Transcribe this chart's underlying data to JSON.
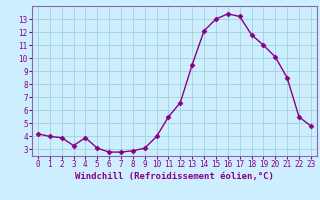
{
  "x": [
    0,
    1,
    2,
    3,
    4,
    5,
    6,
    7,
    8,
    9,
    10,
    11,
    12,
    13,
    14,
    15,
    16,
    17,
    18,
    19,
    20,
    21,
    22,
    23
  ],
  "y": [
    4.2,
    4.0,
    3.9,
    3.3,
    3.9,
    3.1,
    2.8,
    2.8,
    2.9,
    3.1,
    4.0,
    5.5,
    6.6,
    9.5,
    12.1,
    13.0,
    13.4,
    13.2,
    11.8,
    11.0,
    10.1,
    8.5,
    5.5,
    4.8
  ],
  "line_color": "#880088",
  "marker": "D",
  "markersize": 2.5,
  "linewidth": 1.0,
  "background_color": "#cceeff",
  "grid_color": "#99cccc",
  "xlabel": "Windchill (Refroidissement éolien,°C)",
  "xlabel_color": "#880088",
  "tick_color": "#880088",
  "ylim": [
    2.5,
    14.0
  ],
  "xlim": [
    -0.5,
    23.5
  ],
  "yticks": [
    3,
    4,
    5,
    6,
    7,
    8,
    9,
    10,
    11,
    12,
    13
  ],
  "xticks": [
    0,
    1,
    2,
    3,
    4,
    5,
    6,
    7,
    8,
    9,
    10,
    11,
    12,
    13,
    14,
    15,
    16,
    17,
    18,
    19,
    20,
    21,
    22,
    23
  ],
  "spine_color": "#8866aa",
  "axis_bg": "#cceeff",
  "tick_fontsize": 5.5,
  "ylabel_fontsize": 6.0,
  "xlabel_fontsize": 6.5
}
